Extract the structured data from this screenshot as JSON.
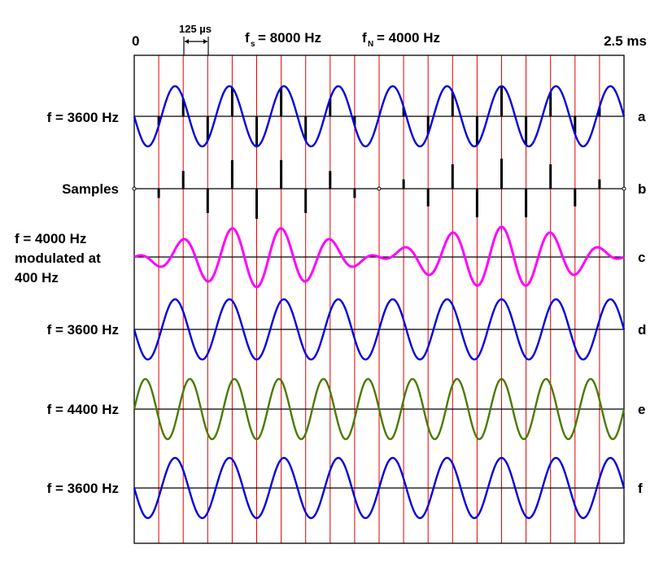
{
  "header": {
    "start_label": "0",
    "end_label": "2.5 ms",
    "interval_label": "125 µs",
    "fs_symbol": "f",
    "fs_sub": "s",
    "fs_value": "= 8000 Hz",
    "fn_symbol": "f",
    "fn_sub": "N",
    "fn_value": "= 4000 Hz"
  },
  "colors": {
    "grid": "#e00000",
    "axis": "#000000",
    "blue": "#0000e0",
    "magenta": "#ff00ff",
    "green": "#4a7a00",
    "samples": "#000000"
  },
  "diagram": {
    "time_span_ms": 2.5,
    "sample_rate_hz": 8000,
    "rows": [
      {
        "letter": "a",
        "label": [
          "f = 3600 Hz"
        ],
        "type": "wave",
        "freq_hz": 3600,
        "color": "#0000e0",
        "samples": true
      },
      {
        "letter": "b",
        "label": [
          "Samples"
        ],
        "type": "samples",
        "freq_hz": 3600
      },
      {
        "letter": "c",
        "label": [
          "f = 4000 Hz",
          "modulated at",
          "400 Hz"
        ],
        "type": "modulated",
        "freq_hz": 4000,
        "modulation_hz": 400,
        "color": "#ff00ff",
        "samples": true
      },
      {
        "letter": "d",
        "label": [
          "f = 3600 Hz"
        ],
        "type": "wave",
        "freq_hz": 3600,
        "color": "#0000e0"
      },
      {
        "letter": "e",
        "label": [
          "f = 4400 Hz"
        ],
        "type": "wave",
        "freq_hz": 4400,
        "color": "#4a7a00"
      },
      {
        "letter": "f",
        "label": [
          "f = 3600 Hz"
        ],
        "type": "wave",
        "freq_hz": 3600,
        "color": "#0000e0"
      }
    ]
  }
}
